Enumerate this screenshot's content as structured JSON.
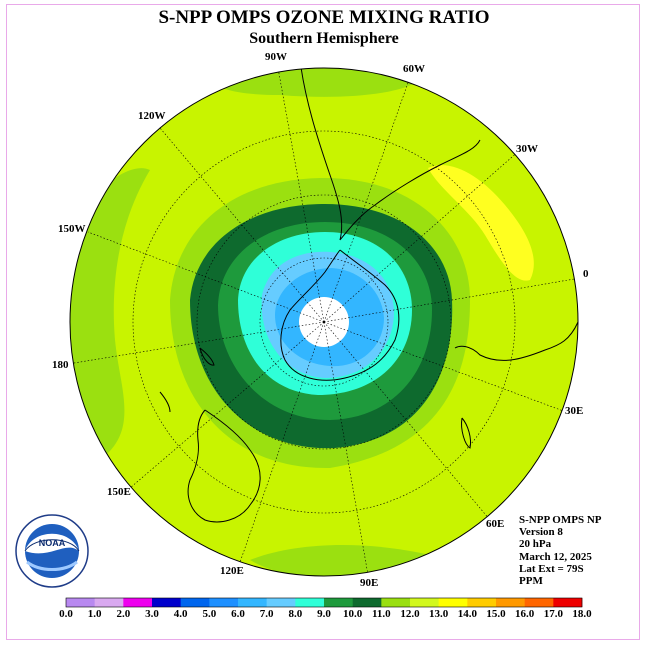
{
  "title": "S-NPP OMPS OZONE MIXING RATIO",
  "subtitle": "Southern Hemisphere",
  "meridian_labels": {
    "m90w": "90W",
    "m60w": "60W",
    "m120w": "120W",
    "m30w": "30W",
    "m150w": "150W",
    "m0": "0",
    "m180": "180",
    "m30e": "30E",
    "m150e": "150E",
    "m60e": "60E",
    "m120e": "120E",
    "m90e": "90E"
  },
  "info": {
    "instrument": "S-NPP OMPS NP",
    "version": "Version 8",
    "level": "20 hPa",
    "date": "March 12, 2025",
    "lat_ext": "Lat Ext = 79S",
    "units": "PPM"
  },
  "logo": {
    "text": "NOAA",
    "ring_text": "NATIONAL OCEANIC AND ATMOSPHERIC ADMINISTRATION · U.S. DEPARTMENT OF COMMERCE"
  },
  "colorbar": {
    "ticks": [
      "0.0",
      "1.0",
      "2.0",
      "3.0",
      "4.0",
      "5.0",
      "6.0",
      "7.0",
      "8.0",
      "9.0",
      "10.0",
      "11.0",
      "12.0",
      "13.0",
      "14.0",
      "15.0",
      "16.0",
      "17.0",
      "18.0"
    ],
    "colors": [
      "#b889f0",
      "#d9a9f0",
      "#ee00ee",
      "#0000cc",
      "#0066ee",
      "#1e90ff",
      "#33b6ff",
      "#66ccff",
      "#2fffd8",
      "#1e9a3c",
      "#0e6a2e",
      "#9adf10",
      "#d2f81e",
      "#ffff00",
      "#ffcc00",
      "#ff9900",
      "#ff6600",
      "#ee0000",
      "#8b5a2b"
    ]
  },
  "map": {
    "background_color": "#c8f400",
    "pole_color": "#ffffff"
  }
}
